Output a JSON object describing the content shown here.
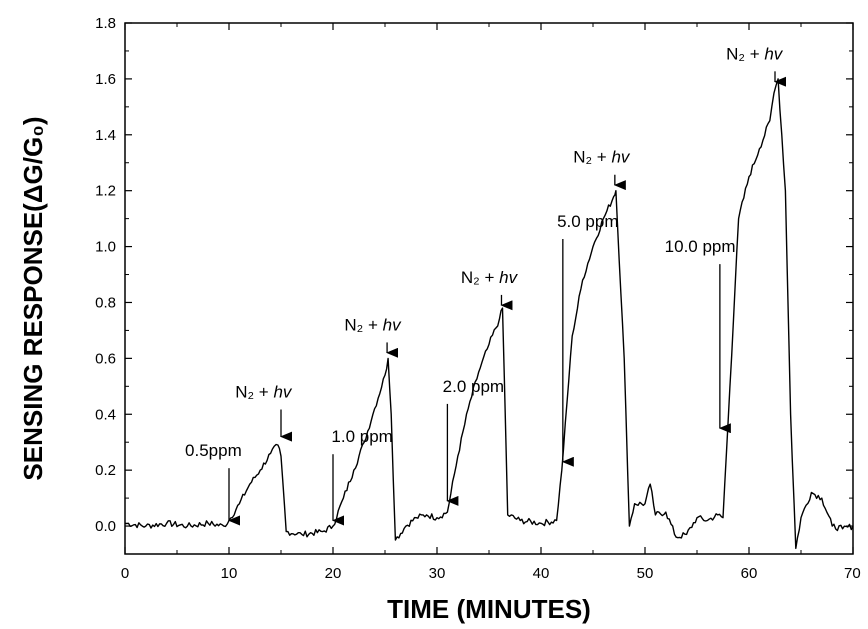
{
  "chart_data": {
    "type": "line",
    "xlabel": "TIME (MINUTES)",
    "ylabel": "SENSING RESPONSE(ΔG/G₀)",
    "xlim": [
      0,
      70
    ],
    "ylim": [
      -0.1,
      1.8
    ],
    "xticks": [
      0,
      10,
      20,
      30,
      40,
      50,
      60,
      70
    ],
    "yticks": [
      0.0,
      0.2,
      0.4,
      0.6,
      0.8,
      1.0,
      1.2,
      1.4,
      1.6,
      1.8
    ],
    "grid": false,
    "line_color": "#000000",
    "series": [
      {
        "x": [
          0,
          2,
          4,
          6,
          8,
          9.5,
          10,
          11,
          12,
          13,
          14,
          14.7,
          15,
          15.5,
          17,
          19,
          20,
          21,
          22,
          23,
          24,
          25,
          25.3,
          25.6,
          26,
          27,
          28,
          29,
          30,
          31,
          32,
          33,
          34,
          35,
          36,
          36.3,
          36.8,
          38,
          40,
          41.5,
          42,
          43,
          44,
          45,
          46,
          47,
          47.2,
          48,
          48.5,
          49,
          50,
          50.5,
          51,
          52,
          53,
          54,
          55,
          56,
          57,
          57.5,
          58,
          59,
          60,
          61,
          62,
          62.4,
          62.8,
          63.5,
          64,
          64.5,
          65,
          66,
          67,
          68,
          69,
          70
        ],
        "y": [
          0.01,
          0.0,
          0.01,
          0.0,
          0.01,
          0.0,
          0.02,
          0.08,
          0.15,
          0.2,
          0.26,
          0.29,
          0.25,
          -0.02,
          -0.03,
          -0.02,
          0.0,
          0.1,
          0.2,
          0.3,
          0.42,
          0.54,
          0.6,
          0.4,
          -0.05,
          0.0,
          0.03,
          0.04,
          0.03,
          0.05,
          0.25,
          0.42,
          0.55,
          0.65,
          0.74,
          0.78,
          0.04,
          0.02,
          0.01,
          0.02,
          0.2,
          0.68,
          0.88,
          1.0,
          1.1,
          1.18,
          1.2,
          0.6,
          0.0,
          0.08,
          0.08,
          0.15,
          0.04,
          0.05,
          -0.04,
          -0.03,
          0.03,
          0.02,
          0.04,
          0.03,
          0.38,
          1.1,
          1.25,
          1.35,
          1.45,
          1.55,
          1.6,
          1.2,
          0.4,
          -0.08,
          0.03,
          0.12,
          0.1,
          0.0,
          -0.01,
          0.0
        ]
      }
    ],
    "annotations": [
      {
        "text": "0.5ppm",
        "arrow_x": 10,
        "arrow_y": 0.02,
        "text_x": 8.5,
        "text_y": 0.25
      },
      {
        "text": "1.0 ppm",
        "arrow_x": 20,
        "arrow_y": 0.02,
        "text_x": 22.8,
        "text_y": 0.3
      },
      {
        "text": "2.0 ppm",
        "arrow_x": 31,
        "arrow_y": 0.09,
        "text_x": 33.5,
        "text_y": 0.48
      },
      {
        "text": "5.0 ppm",
        "arrow_x": 42.1,
        "arrow_y": 0.23,
        "text_x": 44.5,
        "text_y": 1.07
      },
      {
        "text": "10.0 ppm",
        "arrow_x": 57.2,
        "arrow_y": 0.35,
        "text_x": 55.3,
        "text_y": 0.98
      },
      {
        "text": "N₂ + hv",
        "arrow_x": 15,
        "arrow_y": 0.32,
        "text_x": 13.3,
        "text_y": 0.46
      },
      {
        "text": "N₂ + hv",
        "arrow_x": 25.2,
        "arrow_y": 0.62,
        "text_x": 23.8,
        "text_y": 0.7
      },
      {
        "text": "N₂ + hv",
        "arrow_x": 36.2,
        "arrow_y": 0.79,
        "text_x": 35.0,
        "text_y": 0.87
      },
      {
        "text": "N₂ + hv",
        "arrow_x": 47.1,
        "arrow_y": 1.22,
        "text_x": 45.8,
        "text_y": 1.3
      },
      {
        "text": "N₂ + hv",
        "arrow_x": 62.5,
        "arrow_y": 1.59,
        "text_x": 60.5,
        "text_y": 1.67
      }
    ]
  }
}
